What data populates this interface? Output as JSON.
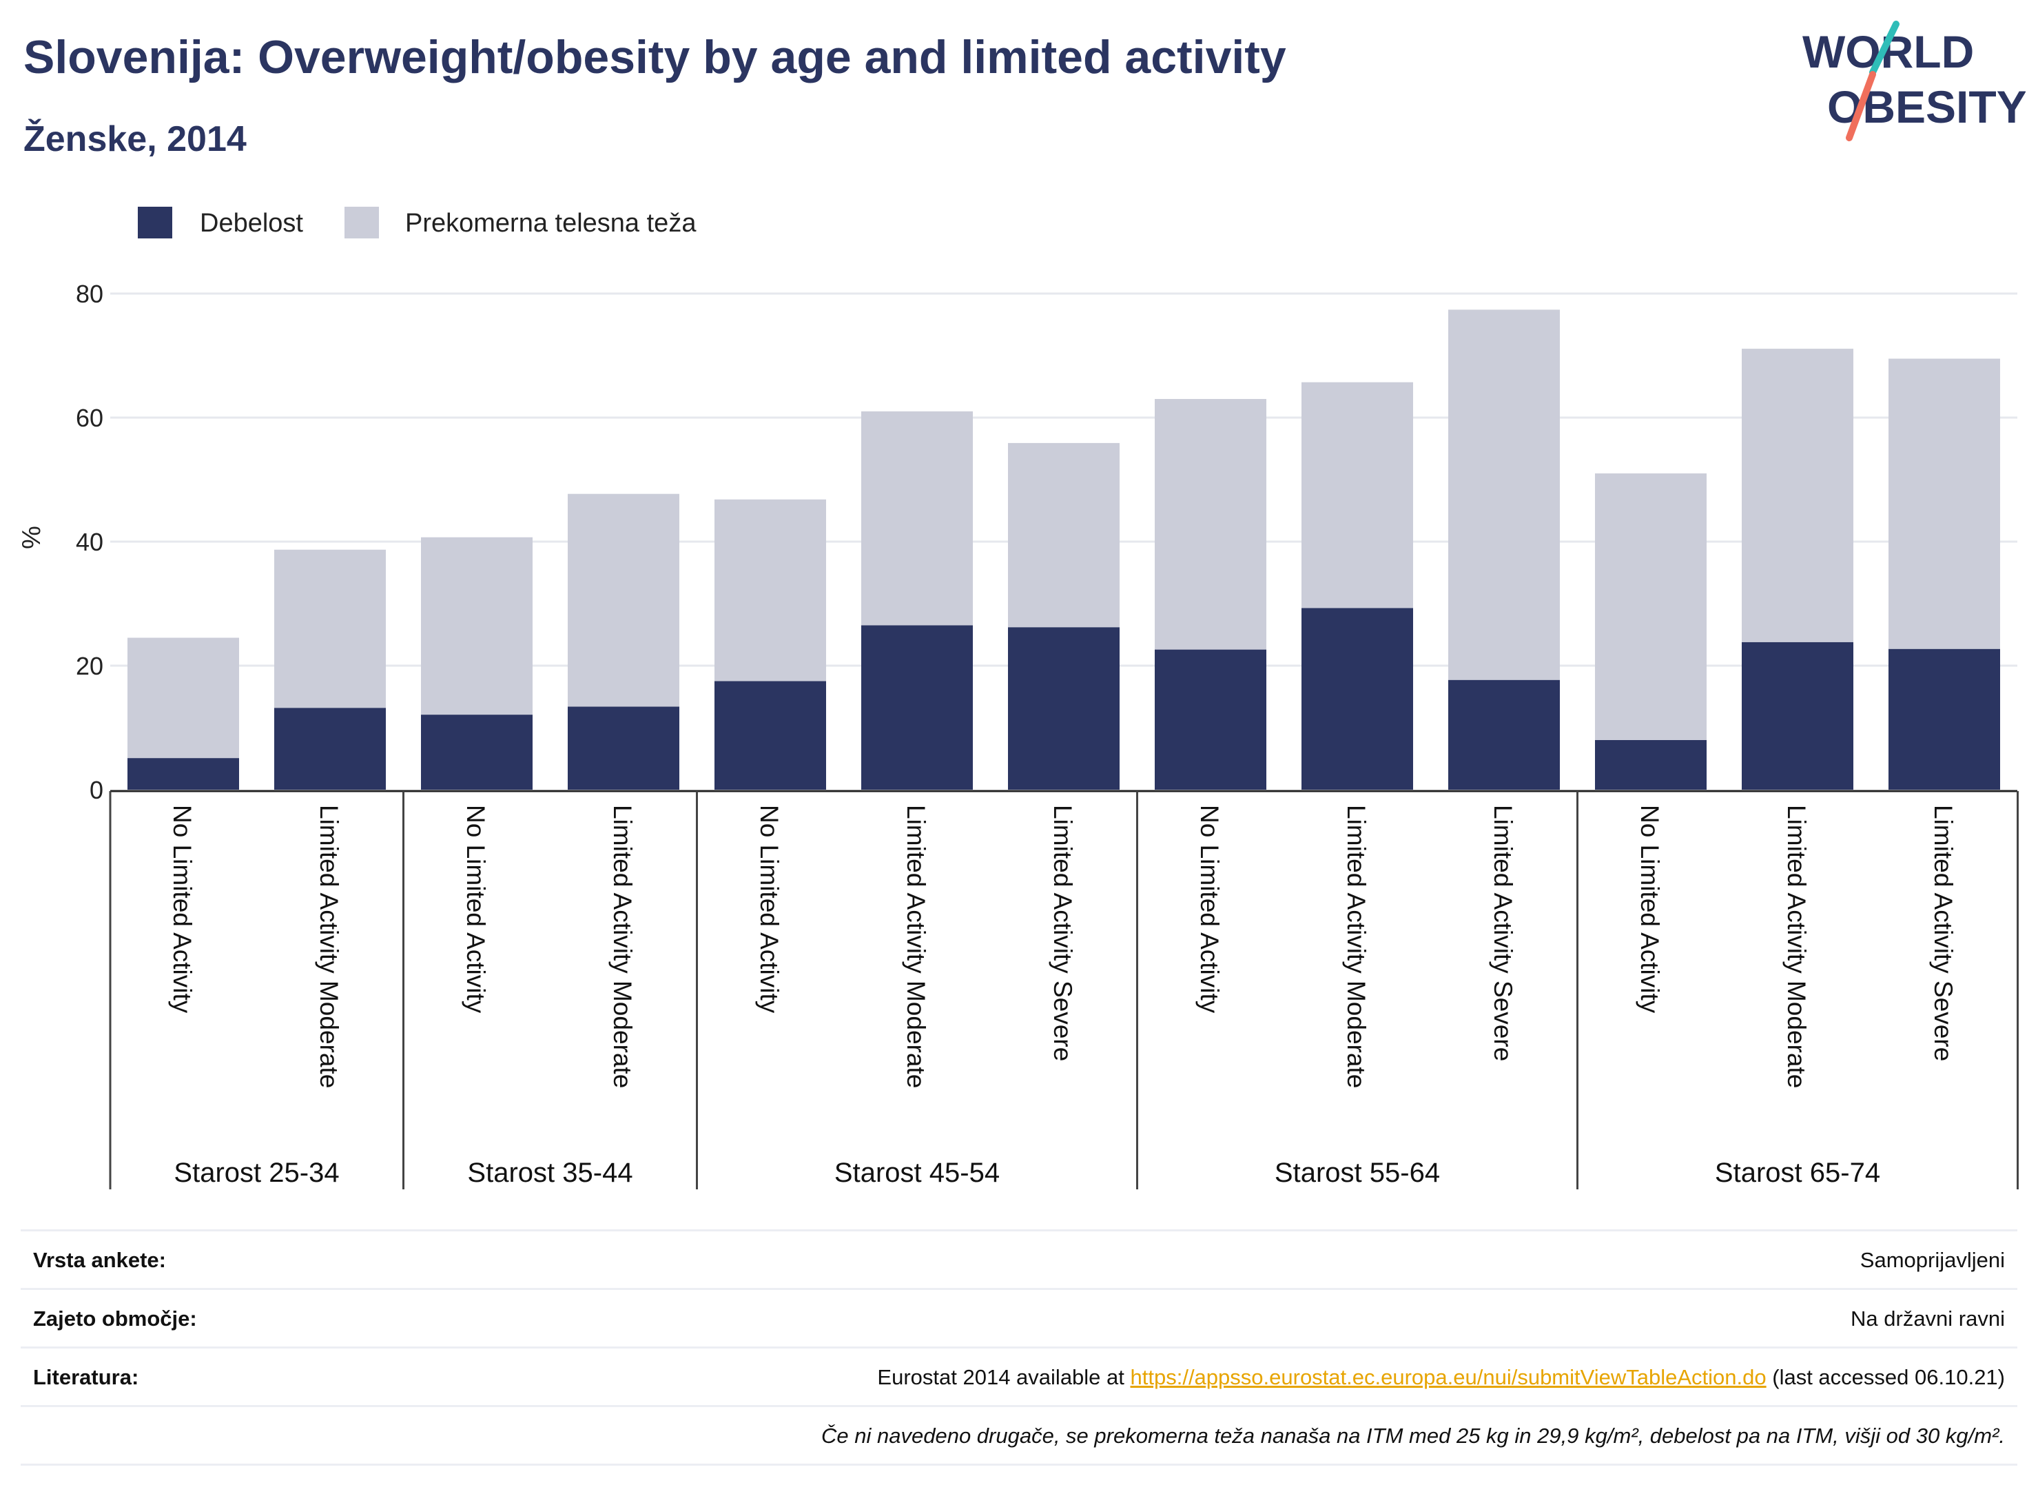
{
  "title": "Slovenija: Overweight/obesity by age and limited activity",
  "subtitle": "Ženske, 2014",
  "logo": {
    "line1": "WORLD",
    "line2": "OBESITY"
  },
  "colors": {
    "obesity": "#2b3561",
    "overweight": "#cbcdd9",
    "accent_teal": "#2fbdb8",
    "accent_coral": "#f06f5c",
    "link": "#e7a400"
  },
  "chart_data": {
    "type": "bar",
    "stacked": true,
    "ylabel": "%",
    "ylim": [
      0,
      80
    ],
    "yticks": [
      0,
      20,
      40,
      60,
      80
    ],
    "grid": true,
    "legend_position": "top-left",
    "groups": [
      {
        "label": "Starost 25-34",
        "categories": [
          "No Limited Activity",
          "Limited Activity Moderate"
        ]
      },
      {
        "label": "Starost 35-44",
        "categories": [
          "No Limited Activity",
          "Limited Activity Moderate"
        ]
      },
      {
        "label": "Starost 45-54",
        "categories": [
          "No Limited Activity",
          "Limited Activity Moderate",
          "Limited Activity Severe"
        ]
      },
      {
        "label": "Starost 55-64",
        "categories": [
          "No Limited Activity",
          "Limited Activity Moderate",
          "Limited Activity Severe"
        ]
      },
      {
        "label": "Starost 65-74",
        "categories": [
          "No Limited Activity",
          "Limited Activity Moderate",
          "Limited Activity Severe"
        ]
      }
    ],
    "series": [
      {
        "name": "Debelost",
        "color": "#2b3561",
        "values": [
          5.1,
          13.2,
          12.1,
          13.4,
          17.5,
          26.5,
          26.2,
          22.6,
          29.3,
          17.7,
          8.0,
          23.8,
          22.7
        ]
      },
      {
        "name": "Prekomerna telesna teža",
        "color": "#cbcdd9",
        "values": [
          19.4,
          25.5,
          28.6,
          34.3,
          29.3,
          34.5,
          29.7,
          40.4,
          36.4,
          59.7,
          43.0,
          47.3,
          46.8
        ]
      }
    ]
  },
  "info": {
    "survey_label": "Vrsta ankete:",
    "survey_value": "Samoprijavljeni",
    "coverage_label": "Zajeto območje:",
    "coverage_value": "Na državni ravni",
    "ref_label": "Literatura:",
    "ref_prefix": "Eurostat 2014 available at ",
    "ref_link": "https://appsso.eurostat.ec.europa.eu/nui/submitViewTableAction.do",
    "ref_suffix": " (last accessed 06.10.21)",
    "note": "Če ni navedeno drugače, se prekomerna teža nanaša na ITM med 25 kg in 29,9 kg/m², debelost pa na ITM, višji od 30 kg/m²."
  }
}
